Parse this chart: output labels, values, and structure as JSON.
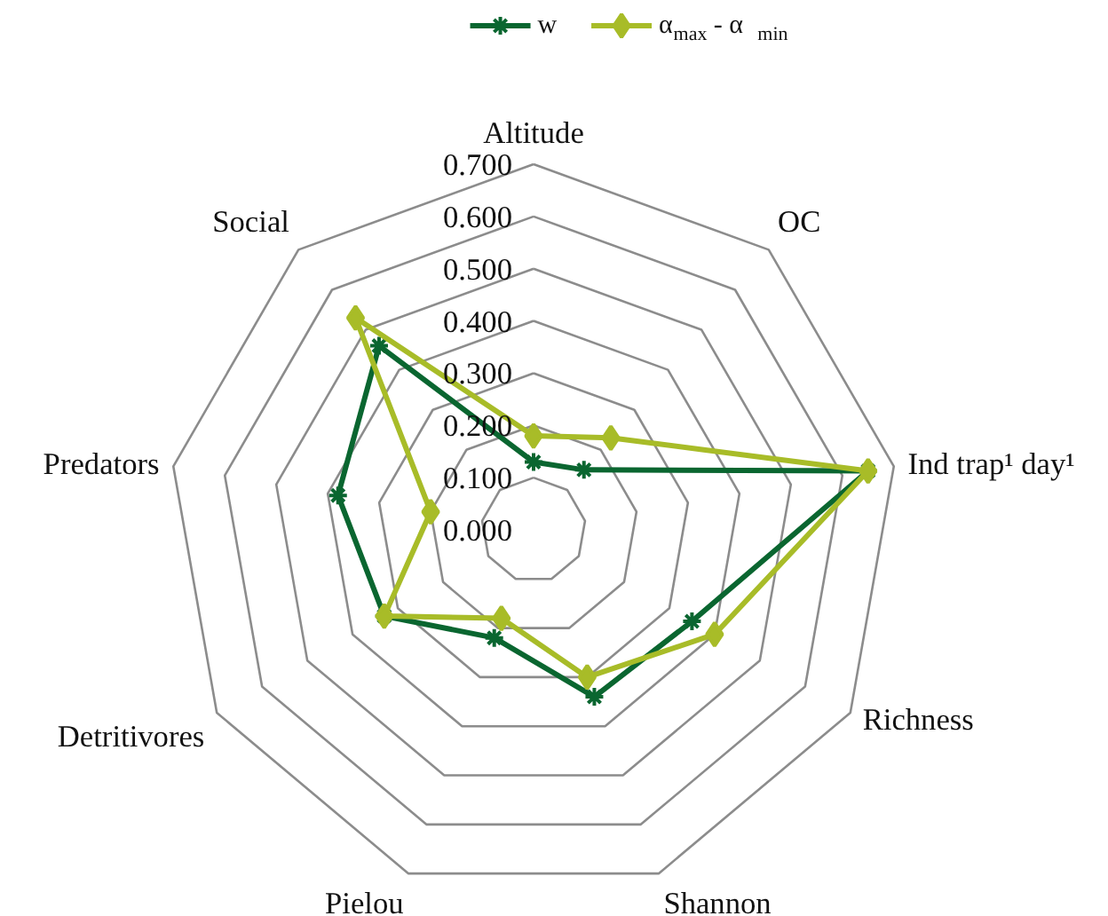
{
  "chart_data": {
    "type": "radar",
    "categories": [
      "Altitude",
      "OC",
      "Ind trap¹ day¹",
      "Richness",
      "Shannon",
      "Pielou",
      "Detritivores",
      "Predators",
      "Social"
    ],
    "ylim": [
      0,
      0.7
    ],
    "yticks": [
      {
        "value": 0,
        "label": "0.000"
      },
      {
        "value": 0.1,
        "label": "0.100"
      },
      {
        "value": 0.2,
        "label": "0.200"
      },
      {
        "value": 0.3,
        "label": "0.300"
      },
      {
        "value": 0.4,
        "label": "0.400"
      },
      {
        "value": 0.5,
        "label": "0.500"
      },
      {
        "value": 0.6,
        "label": "0.600"
      },
      {
        "value": 0.7,
        "label": "0.700"
      }
    ],
    "grid": true,
    "legend": "top",
    "line_style": "solid",
    "series": [
      {
        "name": "w",
        "color": "#0a6630",
        "marker": "cross",
        "values": [
          0.13,
          0.15,
          0.65,
          0.35,
          0.34,
          0.22,
          0.33,
          0.38,
          0.46
        ]
      },
      {
        "name": "α$_{max}$ - α$_{min}$",
        "color": "#a8bc28",
        "marker": "diamond",
        "values": [
          0.18,
          0.23,
          0.65,
          0.4,
          0.3,
          0.18,
          0.33,
          0.2,
          0.53
        ]
      }
    ]
  }
}
